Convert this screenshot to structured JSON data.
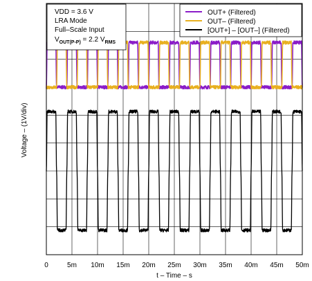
{
  "chart_data": {
    "type": "line",
    "xlabel": "t – Time – s",
    "ylabel": "Voltage – (1V/div)",
    "x_ticks": [
      "0",
      "5m",
      "10m",
      "15m",
      "20m",
      "25m",
      "30m",
      "35m",
      "40m",
      "45m",
      "50m"
    ],
    "xlim": [
      0,
      0.05
    ],
    "x_divisions": 10,
    "y_divisions": 9,
    "grid": true,
    "legend_position": "top-right",
    "annotations": [
      "VDD = 3.6 V",
      "LRA Mode",
      "Full–Scale Input",
      {
        "main": "V",
        "sub1": "OUT(P-P)",
        "mid": " = 2.2 V",
        "sub2": "RMS"
      }
    ],
    "period_s": 0.004,
    "series": [
      {
        "name": "OUT+ (Filtered)",
        "color": "#8a1cc8",
        "waveform": "square",
        "high_div": 7.6,
        "low_div": 6.0,
        "phase_s": 0.0
      },
      {
        "name": "OUT– (Filtered)",
        "color": "#e8b020",
        "waveform": "square",
        "high_div": 7.6,
        "low_div": 6.0,
        "phase_s": 0.002
      },
      {
        "name": "[OUT+] – [OUT–] (Filtered)",
        "color": "#000000",
        "waveform": "square",
        "high_div": 5.1,
        "low_div": 0.85,
        "mid_div": 3.0,
        "phase_s": 0.0
      }
    ]
  }
}
